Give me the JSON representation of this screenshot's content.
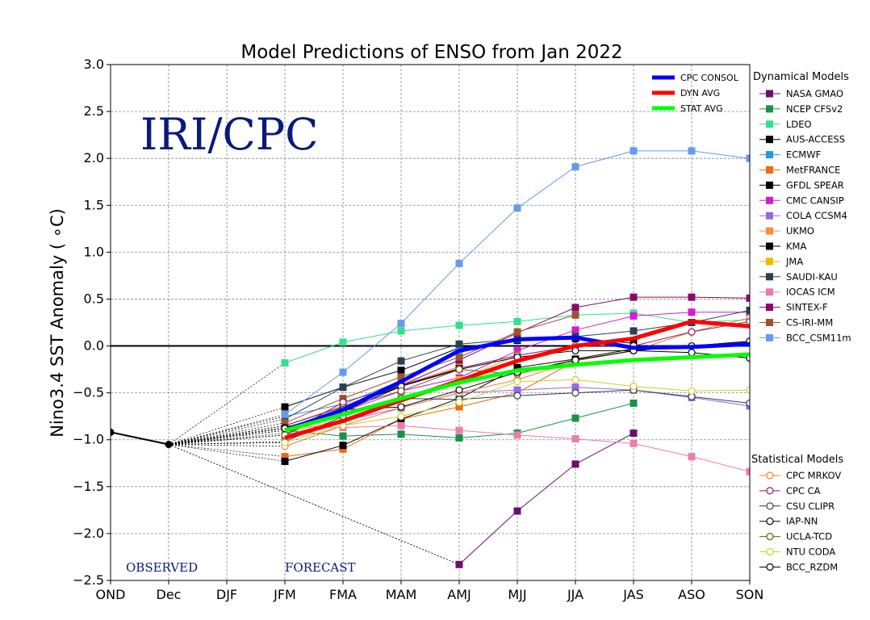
{
  "chart_data": {
    "type": "line",
    "title": "Model Predictions of ENSO from Jan 2022",
    "ylabel": "Nino3.4 SST Anomaly ( ∘C)",
    "xlabel": "",
    "watermark": "IRI/CPC",
    "observed_label": "OBSERVED",
    "forecast_label": "FORECAST",
    "ylim": [
      -2.5,
      3.0
    ],
    "yticks": [
      -2.5,
      -2.0,
      -1.5,
      -1.0,
      -0.5,
      0.0,
      0.5,
      1.0,
      1.5,
      2.0,
      2.5,
      3.0
    ],
    "ytick_labels": [
      "−2.5",
      "−2.0",
      "−1.5",
      "−1.0",
      "−0.5",
      "0.0",
      "0.5",
      "1.0",
      "1.5",
      "2.0",
      "2.5",
      "3.0"
    ],
    "categories": [
      "OND",
      "Dec",
      "DJF",
      "JFM",
      "FMA",
      "MAM",
      "AMJ",
      "MJJ",
      "JJA",
      "JAS",
      "ASO",
      "SON"
    ],
    "grid": true,
    "legend_placement": "right",
    "observed": {
      "x": [
        "OND",
        "Dec"
      ],
      "values": [
        -0.92,
        -1.05
      ],
      "color": "#000000"
    },
    "consensus": [
      {
        "name": "CPC CONSOL",
        "color": "#0000ff",
        "values": [
          null,
          null,
          null,
          -0.9,
          -0.68,
          -0.38,
          -0.05,
          0.07,
          0.09,
          -0.02,
          -0.01,
          0.02
        ]
      },
      {
        "name": "DYN AVG",
        "color": "#ff0000",
        "values": [
          null,
          null,
          null,
          -0.98,
          -0.8,
          -0.58,
          -0.37,
          -0.16,
          0.0,
          0.08,
          0.26,
          0.21
        ]
      },
      {
        "name": "STAT AVG",
        "color": "#00ff00",
        "values": [
          null,
          null,
          null,
          -0.9,
          -0.73,
          -0.56,
          -0.39,
          -0.26,
          -0.2,
          -0.15,
          -0.12,
          -0.09
        ]
      }
    ],
    "dynamical_header": "Dynamical Models",
    "dynamical": [
      {
        "name": "NASA GMAO",
        "color": "#6a0f6a",
        "values": [
          null,
          null,
          null,
          null,
          null,
          null,
          -2.33,
          -1.76,
          -1.26,
          -0.93,
          null,
          null
        ]
      },
      {
        "name": "NCEP CFSv2",
        "color": "#18924a",
        "values": [
          null,
          null,
          null,
          -0.9,
          -0.96,
          -0.94,
          -0.98,
          -0.93,
          -0.77,
          -0.61,
          null,
          null
        ]
      },
      {
        "name": "LDEO",
        "color": "#33e08c",
        "values": [
          null,
          null,
          null,
          -0.18,
          0.04,
          0.16,
          0.22,
          0.26,
          0.33,
          0.35,
          0.25,
          0.28
        ]
      },
      {
        "name": "AUS-ACCESS",
        "color": "#000000",
        "values": [
          null,
          null,
          null,
          -0.65,
          -0.44,
          -0.26,
          -0.02,
          0.06,
          0.08,
          0.03,
          null,
          null
        ]
      },
      {
        "name": "ECMWF",
        "color": "#2196f3",
        "values": [
          null,
          null,
          null,
          -0.75,
          -0.62,
          -0.37,
          -0.04,
          null,
          null,
          null,
          null,
          null
        ]
      },
      {
        "name": "MetFRANCE",
        "color": "#f06a10",
        "values": [
          null,
          null,
          null,
          -1.18,
          -1.1,
          -0.78,
          -0.65,
          -0.5,
          -0.16,
          null,
          null,
          null
        ]
      },
      {
        "name": "GFDL SPEAR",
        "color": "#000000",
        "values": [
          null,
          null,
          null,
          -1.23,
          -1.06,
          -0.78,
          -0.56,
          -0.23,
          -0.14,
          -0.03,
          null,
          null
        ]
      },
      {
        "name": "CMC CANSIP",
        "color": "#d41cd4",
        "values": [
          null,
          null,
          null,
          -0.88,
          -0.7,
          -0.48,
          -0.34,
          -0.05,
          0.17,
          0.32,
          0.36,
          0.36
        ]
      },
      {
        "name": "COLA CCSM4",
        "color": "#9868e0",
        "values": [
          null,
          null,
          null,
          -0.95,
          -0.8,
          -0.66,
          -0.5,
          -0.47,
          -0.44,
          -0.47,
          -0.55,
          -0.64
        ]
      },
      {
        "name": "UKMO",
        "color": "#fc8a3c",
        "values": [
          null,
          null,
          null,
          -0.85,
          -0.64,
          -0.42,
          -0.22,
          null,
          null,
          null,
          null,
          null
        ]
      },
      {
        "name": "KMA",
        "color": "#000000",
        "values": [
          null,
          null,
          null,
          -0.9,
          -0.66,
          -0.43,
          -0.24,
          null,
          null,
          null,
          null,
          null
        ]
      },
      {
        "name": "JMA",
        "color": "#f0b800",
        "values": [
          null,
          null,
          null,
          -0.93,
          -0.78,
          -0.56,
          -0.36,
          -0.1,
          null,
          null,
          null,
          null
        ]
      },
      {
        "name": "SAUDI-KAU",
        "color": "#2c4050",
        "values": [
          null,
          null,
          null,
          -0.78,
          -0.44,
          -0.16,
          0.02,
          0.07,
          0.1,
          0.16,
          0.25,
          0.38
        ]
      },
      {
        "name": "IOCAS ICM",
        "color": "#ee7ca8",
        "values": [
          null,
          null,
          null,
          -0.85,
          -0.87,
          -0.85,
          -0.9,
          -0.95,
          -0.99,
          -1.04,
          -1.18,
          -1.34
        ]
      },
      {
        "name": "SINTEX-F",
        "color": "#8a0a6a",
        "values": [
          null,
          null,
          null,
          -0.85,
          -0.65,
          -0.42,
          -0.15,
          0.14,
          0.41,
          0.52,
          0.52,
          0.51
        ]
      },
      {
        "name": "CS-IRI-MM",
        "color": "#a0522d",
        "values": [
          null,
          null,
          null,
          -0.82,
          -0.56,
          -0.33,
          -0.12,
          0.15,
          0.33,
          null,
          null,
          null
        ]
      },
      {
        "name": "BCC_CSM11m",
        "color": "#6699f0",
        "values": [
          null,
          null,
          null,
          -0.73,
          -0.28,
          0.24,
          0.88,
          1.47,
          1.91,
          2.08,
          2.08,
          2.0
        ]
      }
    ],
    "statistical_header": "Statistical Models",
    "statistical": [
      {
        "name": "CPC MRKOV",
        "color": "#f08030",
        "values": [
          null,
          null,
          null,
          -1.07,
          -0.85,
          -0.66,
          -0.5,
          -0.36,
          -0.16,
          -0.05,
          0.15,
          0.3
        ]
      },
      {
        "name": "CPC CA",
        "color": "#8a1a6a",
        "values": [
          null,
          null,
          null,
          -0.95,
          -0.6,
          -0.42,
          -0.24,
          -0.1,
          0.0,
          0.0,
          0.15,
          0.26
        ]
      },
      {
        "name": "CSU CLIPR",
        "color": "#2c4050",
        "values": [
          null,
          null,
          null,
          -1.02,
          -0.75,
          -0.56,
          -0.57,
          -0.53,
          -0.5,
          -0.47,
          -0.54,
          -0.61
        ]
      },
      {
        "name": "IAP-NN",
        "color": "#000000",
        "values": [
          null,
          null,
          null,
          -0.87,
          -0.7,
          -0.43,
          -0.25,
          -0.12,
          -0.05,
          -0.05,
          -0.07,
          -0.13
        ]
      },
      {
        "name": "UCLA-TCD",
        "color": "#6b5a10",
        "values": [
          null,
          null,
          null,
          -0.95,
          -0.66,
          -0.48,
          -0.25,
          -0.3,
          -0.15,
          -0.05,
          0.0,
          0.05
        ]
      },
      {
        "name": "NTU CODA",
        "color": "#c8d030",
        "values": [
          null,
          null,
          null,
          -1.03,
          -0.85,
          -0.75,
          -0.6,
          -0.38,
          -0.36,
          -0.43,
          -0.48,
          -0.47
        ]
      },
      {
        "name": "BCC_RZDM",
        "color": "#000000",
        "values": [
          null,
          null,
          null,
          -0.88,
          -0.68,
          -0.65,
          -0.47,
          -0.28,
          -0.15,
          -0.05,
          0.0,
          0.05
        ]
      }
    ]
  }
}
